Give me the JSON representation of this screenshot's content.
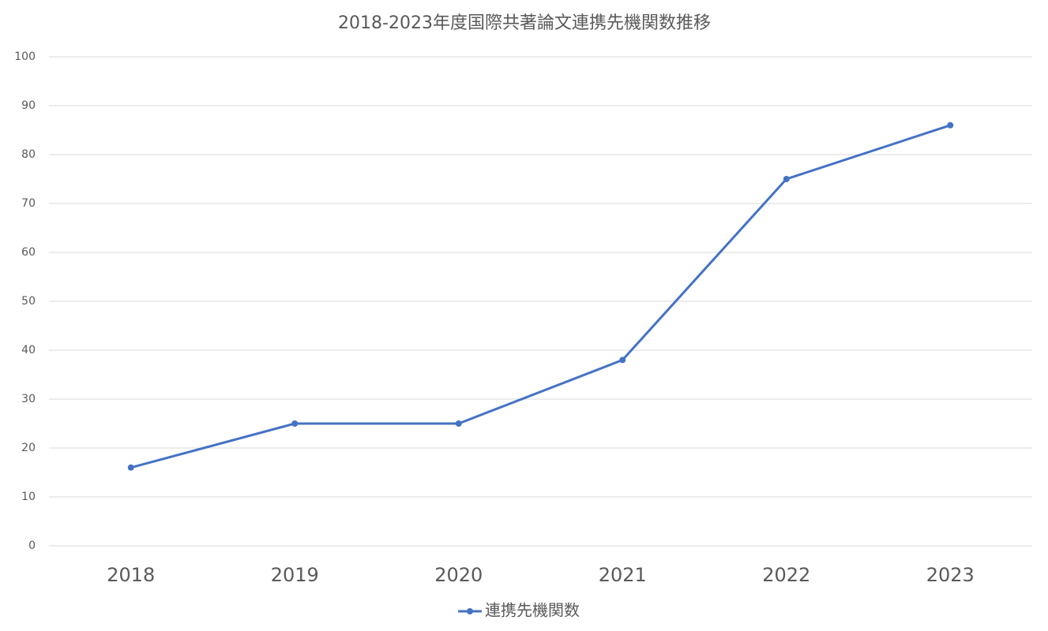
{
  "chart_data": {
    "type": "line",
    "title": "2018-2023年度国際共著論文連携先機関数推移",
    "categories": [
      "2018",
      "2019",
      "2020",
      "2021",
      "2022",
      "2023"
    ],
    "series": [
      {
        "name": "連携先機関数",
        "color": "#4472c4",
        "values": [
          16,
          25,
          25,
          38,
          75,
          86
        ]
      }
    ],
    "ylim": [
      0,
      100
    ],
    "yticks": [
      0,
      10,
      20,
      30,
      40,
      50,
      60,
      70,
      80,
      90,
      100
    ],
    "grid": true,
    "legend": "bottom"
  }
}
